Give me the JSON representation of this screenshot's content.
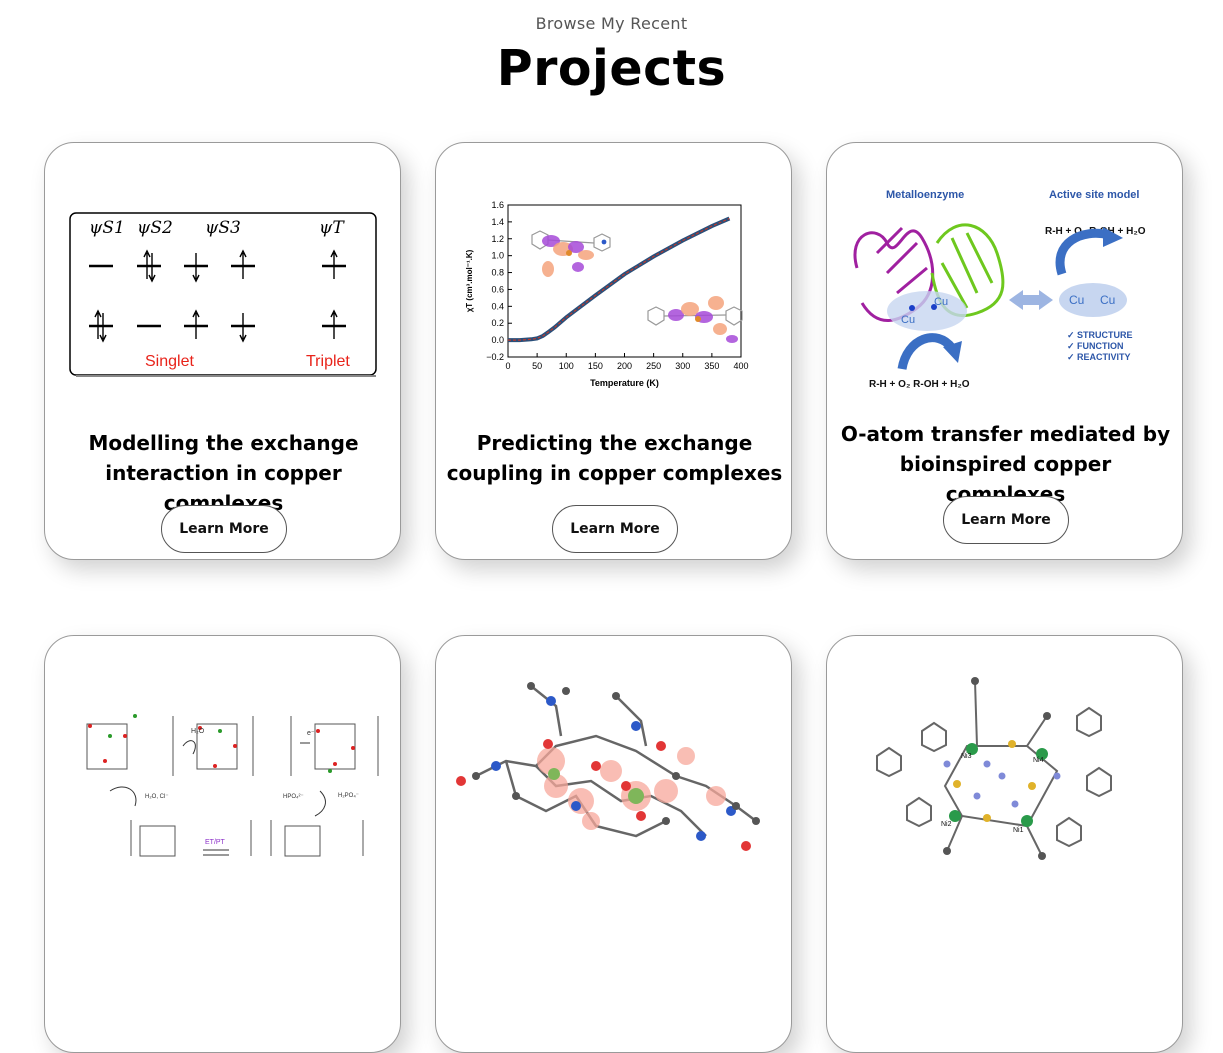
{
  "header": {
    "subtitle": "Browse My Recent",
    "title": "Projects"
  },
  "projects": [
    {
      "title": "Modelling the exchange interaction in copper complexes",
      "button": "Learn More",
      "figure": {
        "orbitals": [
          "ψS1",
          "ψS2",
          "ψS3",
          "ψT"
        ],
        "labels": {
          "singlet": "Singlet",
          "triplet": "Triplet"
        },
        "label_color": "#e8231a"
      }
    },
    {
      "title": "Predicting the exchange coupling in copper complexes",
      "button": "Learn More",
      "chart_data": {
        "type": "line",
        "xlabel": "Temperature (K)",
        "ylabel": "χT (cm³.mol⁻¹.K)",
        "xlim": [
          0,
          400
        ],
        "ylim": [
          -0.2,
          1.6
        ],
        "x_ticks": [
          "0",
          "50",
          "100",
          "150",
          "200",
          "250",
          "300",
          "350",
          "400"
        ],
        "y_ticks": [
          "−0.2",
          "0.0",
          "0.2",
          "0.4",
          "0.6",
          "0.8",
          "1.0",
          "1.2",
          "1.4",
          "1.6"
        ],
        "series": [
          {
            "x": [
              0,
              20,
              40,
              50,
              60,
              70,
              80,
              100,
              150,
              200,
              250,
              300,
              350,
              380
            ],
            "y": [
              0.0,
              0.0,
              0.01,
              0.02,
              0.05,
              0.1,
              0.15,
              0.27,
              0.53,
              0.78,
              0.99,
              1.18,
              1.35,
              1.44
            ],
            "color": "#2a4f7a",
            "overlay_color": "#c0392b"
          }
        ]
      }
    },
    {
      "title": "O-atom transfer mediated by bioinspired copper complexes",
      "button": "Learn More",
      "figure": {
        "left_heading": "Metalloenzyme",
        "right_heading": "Active site model",
        "reaction_top": "R-H + O₂   R-OH + H₂O",
        "reaction_bottom": "R-H + O₂   R-OH + H₂O",
        "metal_label": "Cu",
        "checklist": [
          "✓ STRUCTURE",
          "✓ FUNCTION",
          "✓ REACTIVITY"
        ],
        "heading_color": "#2c56a8",
        "arrow_color": "#3b6fc4"
      }
    },
    {
      "title": "",
      "button": "",
      "figure": {
        "labels": [
          "H₂O",
          "e⁻",
          "H₂O, Cl⁻",
          "HPO₄²⁻",
          "H₂PO₄⁻",
          "ET/PT"
        ]
      }
    },
    {
      "title": "",
      "button": "",
      "figure": {}
    },
    {
      "title": "",
      "button": "",
      "figure": {
        "atom_labels": [
          "Ni3",
          "Ni4",
          "Ni2",
          "Ni1"
        ]
      }
    }
  ]
}
